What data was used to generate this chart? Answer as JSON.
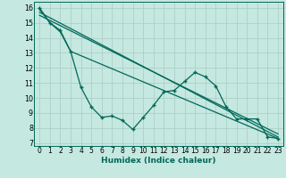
{
  "xlabel": "Humidex (Indice chaleur)",
  "background_color": "#c5e8e0",
  "grid_color": "#aed0c8",
  "line_color": "#006858",
  "xlim": [
    -0.5,
    23.5
  ],
  "ylim": [
    6.8,
    16.4
  ],
  "yticks": [
    7,
    8,
    9,
    10,
    11,
    12,
    13,
    14,
    15,
    16
  ],
  "xticks": [
    0,
    1,
    2,
    3,
    4,
    5,
    6,
    7,
    8,
    9,
    10,
    11,
    12,
    13,
    14,
    15,
    16,
    17,
    18,
    19,
    20,
    21,
    22,
    23
  ],
  "series1_x": [
    0,
    1,
    2,
    3,
    4,
    5,
    6,
    7,
    8,
    9,
    10,
    11,
    12,
    13,
    14,
    15,
    16,
    17,
    18,
    19,
    20,
    21,
    22,
    23
  ],
  "series1_y": [
    16.0,
    15.0,
    14.5,
    13.1,
    10.7,
    9.4,
    8.7,
    8.8,
    8.5,
    7.9,
    8.7,
    9.5,
    10.4,
    10.5,
    11.1,
    11.7,
    11.4,
    10.8,
    9.4,
    8.6,
    8.6,
    8.6,
    7.4,
    7.3
  ],
  "series2_x": [
    0,
    1,
    2,
    3,
    23
  ],
  "series2_y": [
    15.9,
    15.0,
    14.4,
    13.1,
    7.3
  ],
  "series3_x": [
    0,
    23
  ],
  "series3_y": [
    15.7,
    7.4
  ],
  "series4_x": [
    0,
    23
  ],
  "series4_y": [
    15.5,
    7.6
  ]
}
